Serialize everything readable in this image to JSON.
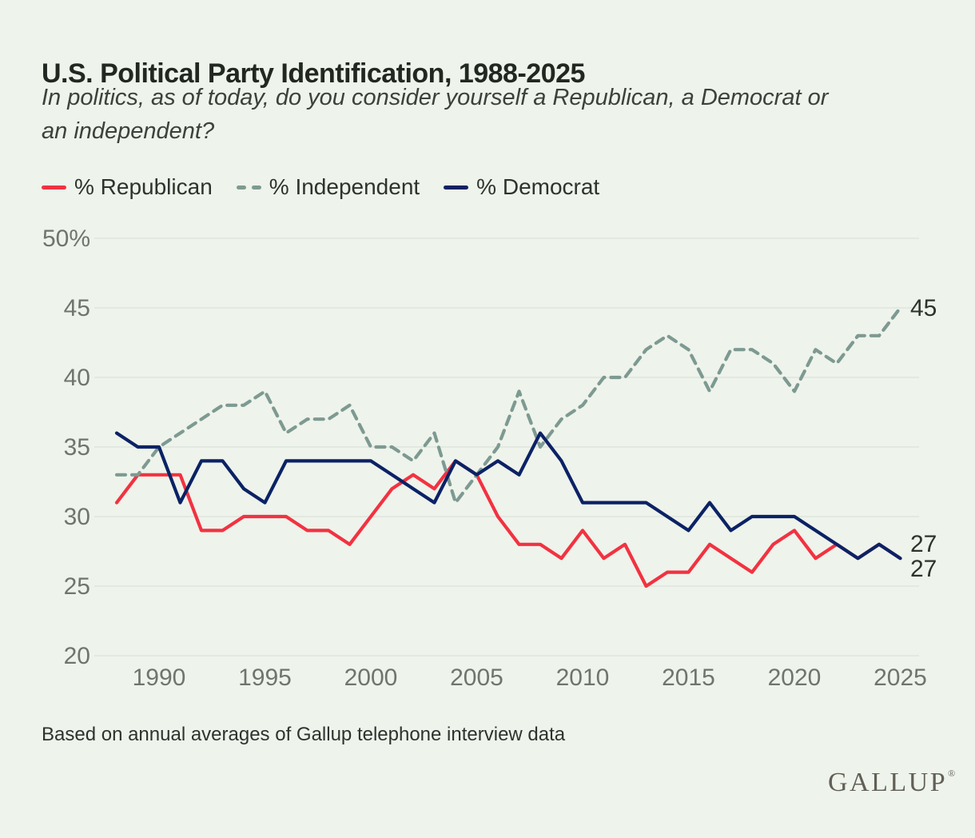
{
  "header": {
    "title": "U.S. Political Party Identification, 1988-2025",
    "subtitle_lines": [
      "In politics, as of today, do you consider yourself a Republican, a Democrat or",
      "an independent?"
    ]
  },
  "legend": [
    {
      "label": "% Republican",
      "color": "#f23241",
      "style": "solid"
    },
    {
      "label": "% Independent",
      "color": "#7d9a92",
      "style": "dashed"
    },
    {
      "label": "% Democrat",
      "color": "#0b2265",
      "style": "solid"
    }
  ],
  "chart_data": {
    "type": "line",
    "title": "U.S. Political Party Identification, 1988-2025",
    "xlabel": "",
    "ylabel": "",
    "ylim": [
      20,
      50
    ],
    "grid": true,
    "legend_position": "top",
    "x": [
      1988,
      1989,
      1990,
      1991,
      1992,
      1993,
      1994,
      1995,
      1996,
      1997,
      1998,
      1999,
      2000,
      2001,
      2002,
      2003,
      2004,
      2005,
      2006,
      2007,
      2008,
      2009,
      2010,
      2011,
      2012,
      2013,
      2014,
      2015,
      2016,
      2017,
      2018,
      2019,
      2020,
      2021,
      2022,
      2023,
      2024,
      2025
    ],
    "series": [
      {
        "name": "% Republican",
        "color": "#f23241",
        "style": "solid",
        "values": [
          31,
          33,
          33,
          33,
          29,
          29,
          30,
          30,
          30,
          29,
          29,
          28,
          30,
          32,
          33,
          32,
          34,
          33,
          30,
          28,
          28,
          27,
          29,
          27,
          28,
          25,
          26,
          26,
          28,
          27,
          26,
          28,
          29,
          27,
          28,
          27,
          28,
          27
        ]
      },
      {
        "name": "% Independent",
        "color": "#7d9a92",
        "style": "dashed",
        "values": [
          33,
          33,
          35,
          36,
          37,
          38,
          38,
          39,
          36,
          37,
          37,
          38,
          35,
          35,
          34,
          36,
          31,
          33,
          35,
          39,
          35,
          37,
          38,
          40,
          40,
          42,
          43,
          42,
          39,
          42,
          42,
          41,
          39,
          42,
          41,
          43,
          43,
          45
        ]
      },
      {
        "name": "% Democrat",
        "color": "#0b2265",
        "style": "solid",
        "values": [
          36,
          35,
          35,
          31,
          34,
          34,
          32,
          31,
          34,
          34,
          34,
          34,
          34,
          33,
          32,
          31,
          34,
          33,
          34,
          33,
          36,
          34,
          31,
          31,
          31,
          31,
          30,
          29,
          31,
          29,
          30,
          30,
          30,
          29,
          28,
          27,
          28,
          27
        ]
      }
    ],
    "yticks": [
      {
        "value": 50,
        "label": "50%"
      },
      {
        "value": 45,
        "label": "45"
      },
      {
        "value": 40,
        "label": "40"
      },
      {
        "value": 35,
        "label": "35"
      },
      {
        "value": 30,
        "label": "30"
      },
      {
        "value": 25,
        "label": "25"
      },
      {
        "value": 20,
        "label": "20"
      }
    ],
    "xticks": [
      {
        "year": 1990,
        "label": "1990"
      },
      {
        "year": 1995,
        "label": "1995"
      },
      {
        "year": 2000,
        "label": "2000"
      },
      {
        "year": 2005,
        "label": "2005"
      },
      {
        "year": 2010,
        "label": "2010"
      },
      {
        "year": 2015,
        "label": "2015"
      },
      {
        "year": 2020,
        "label": "2020"
      },
      {
        "year": 2025,
        "label": "2025"
      }
    ],
    "end_value_labels": [
      "45",
      "27",
      "27"
    ],
    "colors": {
      "grid": "#dce3d9",
      "axis_text": "#6f746d",
      "end_label_text": "#2e322d"
    }
  },
  "footer": {
    "note": "Based on annual averages of Gallup telephone interview data",
    "logo": "GALLUP"
  }
}
